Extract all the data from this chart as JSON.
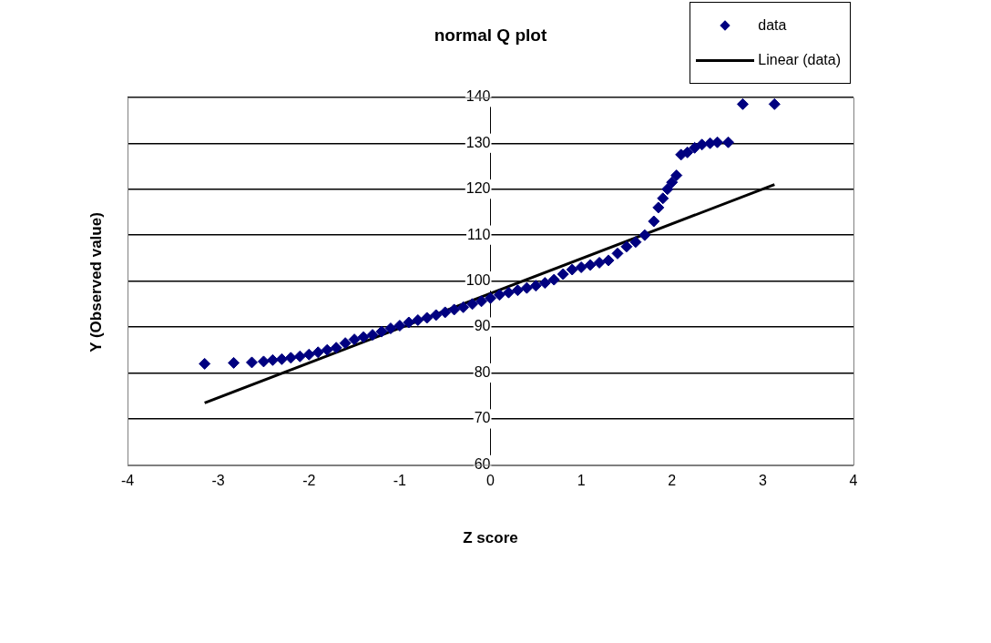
{
  "chart_data": {
    "type": "scatter",
    "title": "normal Q plot",
    "xlabel": "Z score",
    "ylabel": "Y (Observed value)",
    "xlim": [
      -4,
      4
    ],
    "xticks": [
      -4,
      -3,
      -2,
      -1,
      0,
      1,
      2,
      3,
      4
    ],
    "ylim": [
      60,
      140
    ],
    "yticks": [
      60,
      70,
      80,
      90,
      100,
      110,
      120,
      130,
      140
    ],
    "grid": "y",
    "legend": "top right",
    "marker": "diamond",
    "series": [
      {
        "name": "data",
        "type": "scatter",
        "color": "#000080",
        "x": [
          -3.15,
          -2.83,
          -2.63,
          -2.5,
          -2.4,
          -2.3,
          -2.2,
          -2.1,
          -2.0,
          -1.9,
          -1.8,
          -1.7,
          -1.6,
          -1.5,
          -1.4,
          -1.3,
          -1.2,
          -1.1,
          -1.0,
          -0.9,
          -0.8,
          -0.7,
          -0.6,
          -0.5,
          -0.4,
          -0.3,
          -0.2,
          -0.1,
          0,
          0.1,
          0.2,
          0.3,
          0.4,
          0.5,
          0.6,
          0.7,
          0.8,
          0.9,
          1.0,
          1.1,
          1.2,
          1.3,
          1.4,
          1.5,
          1.6,
          1.7,
          1.8,
          1.85,
          1.9,
          1.95,
          2.0,
          2.05,
          2.1,
          2.17,
          2.25,
          2.33,
          2.42,
          2.5,
          2.62,
          2.78,
          3.13
        ],
        "values": [
          82,
          82.2,
          82.3,
          82.5,
          82.8,
          83,
          83.3,
          83.6,
          84,
          84.5,
          85,
          85.5,
          86.5,
          87.3,
          87.8,
          88.3,
          89,
          89.7,
          90.3,
          91,
          91.5,
          92,
          92.6,
          93.2,
          93.8,
          94.3,
          95,
          95.6,
          96.3,
          97,
          97.5,
          98,
          98.5,
          99,
          99.6,
          100.3,
          101.5,
          102.5,
          103,
          103.5,
          104,
          104.5,
          106,
          107.5,
          108.5,
          110,
          113,
          116,
          118,
          120,
          121.5,
          123,
          127.5,
          128,
          129,
          129.7,
          130,
          130.2,
          130.2,
          138.5,
          138.5
        ]
      },
      {
        "name": "Linear (data)",
        "type": "line",
        "color": "#000000",
        "marker": "none",
        "line_style": "solid",
        "x": [
          -3.15,
          3.13
        ],
        "values": [
          73.5,
          121
        ]
      }
    ]
  }
}
